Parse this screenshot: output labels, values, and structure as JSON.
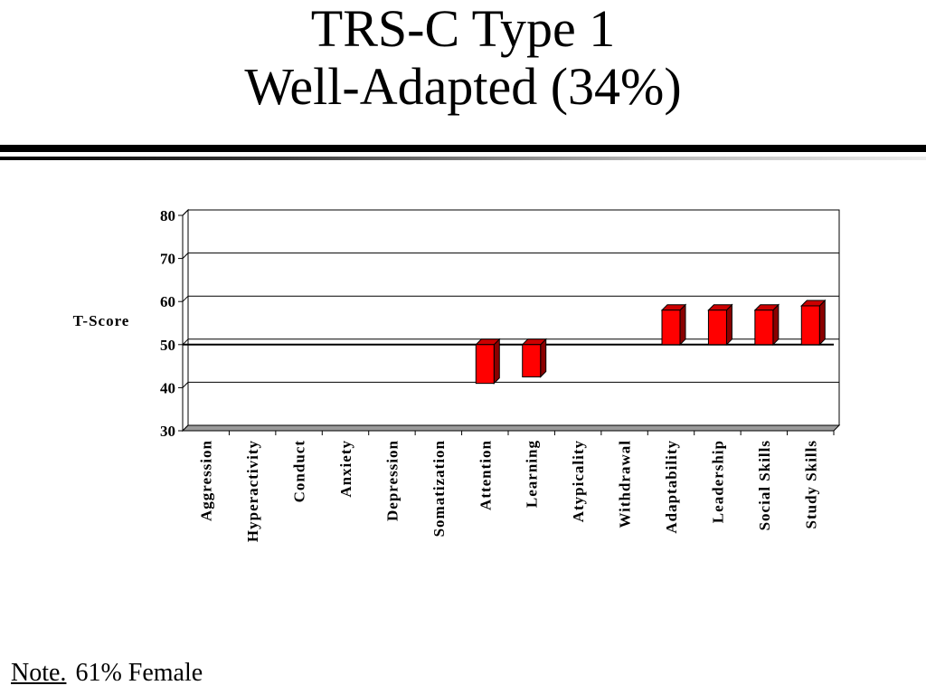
{
  "title": {
    "line1": "TRS-C Type 1",
    "line2": "Well-Adapted (34%)"
  },
  "note": {
    "label": "Note.",
    "text": "61% Female"
  },
  "colors": {
    "bar_front": "#ff0000",
    "bar_side": "#8b0000",
    "bar_top": "#cc0000",
    "grid": "#000000",
    "floor": "#9a9a9a"
  },
  "chart_data": {
    "type": "bar",
    "ylabel": "T-Score",
    "ylim": [
      30,
      80
    ],
    "yticks": [
      30,
      40,
      50,
      60,
      70,
      80
    ],
    "baseline": 50,
    "grid": true,
    "legend": "none",
    "categories": [
      "Aggression",
      "Hyperactivity",
      "Conduct",
      "Anxiety",
      "Depression",
      "Somatization",
      "Attention",
      "Learning",
      "Atypicality",
      "Withdrawal",
      "Adaptability",
      "Leadership",
      "Social Skills",
      "Study Skills"
    ],
    "values": [
      50,
      50,
      50,
      50,
      50,
      50,
      41,
      42.5,
      50,
      50,
      58,
      58,
      58,
      59
    ]
  }
}
